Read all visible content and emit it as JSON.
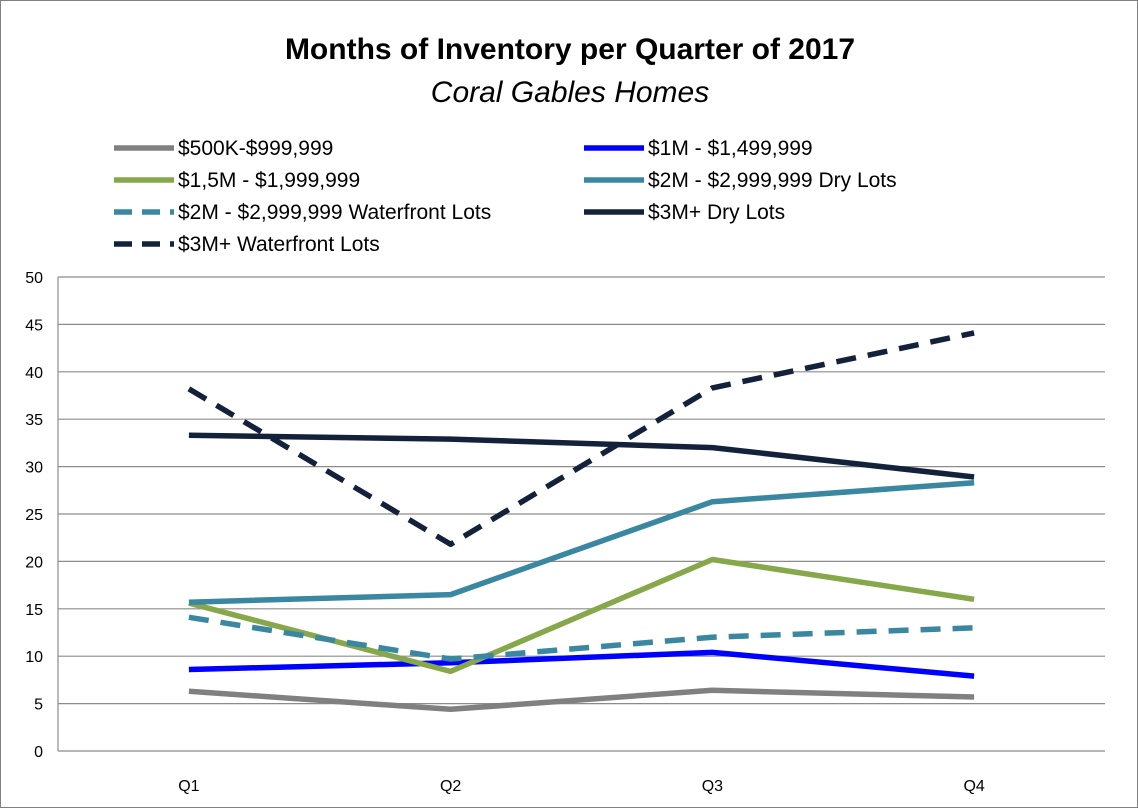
{
  "chart_data": {
    "type": "line",
    "title": "Months of Inventory per Quarter of 2017",
    "subtitle": "Coral Gables Homes",
    "xlabel": "",
    "ylabel": "",
    "categories": [
      "Q1",
      "Q2",
      "Q3",
      "Q4"
    ],
    "ylim": [
      0,
      50
    ],
    "yticks": [
      0,
      5,
      10,
      15,
      20,
      25,
      30,
      35,
      40,
      45,
      50
    ],
    "grid": "horizontal",
    "legend_position": "top",
    "series": [
      {
        "name": "$500K-$999,999",
        "color": "#808080",
        "dashed": false,
        "values": [
          6.3,
          4.4,
          6.4,
          5.7
        ]
      },
      {
        "name": "$1M - $1,499,999",
        "color": "#0000ff",
        "dashed": false,
        "values": [
          8.6,
          9.3,
          10.4,
          7.9
        ]
      },
      {
        "name": "$1,5M - $1,999,999",
        "color": "#86a84a",
        "dashed": false,
        "values": [
          15.6,
          8.4,
          20.2,
          16.0
        ]
      },
      {
        "name": "$2M - $2,999,999 Dry Lots",
        "color": "#3a87a1",
        "dashed": false,
        "values": [
          15.7,
          16.5,
          26.3,
          28.3
        ]
      },
      {
        "name": "$2M - $2,999,999 Waterfront Lots",
        "color": "#3a87a1",
        "dashed": true,
        "values": [
          14.1,
          9.7,
          12.0,
          13.0
        ]
      },
      {
        "name": "$3M+ Dry Lots",
        "color": "#13223a",
        "dashed": false,
        "values": [
          33.3,
          32.9,
          32.0,
          28.9
        ]
      },
      {
        "name": "$3M+ Waterfront Lots",
        "color": "#13223a",
        "dashed": true,
        "values": [
          38.2,
          21.8,
          38.3,
          44.1
        ]
      }
    ]
  }
}
